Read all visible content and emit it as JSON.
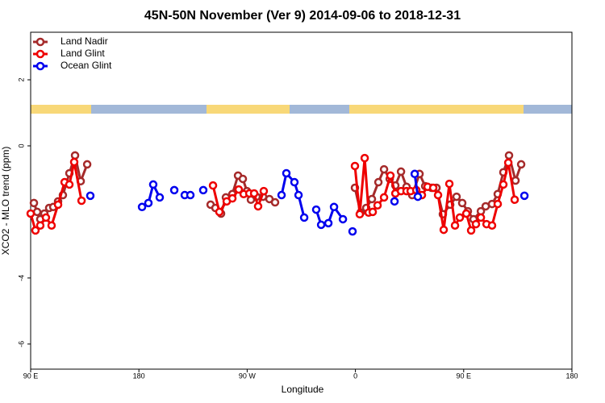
{
  "chart_data": {
    "type": "line",
    "title": "45N-50N November (Ver 9)   2014-09-06 to 2018-12-31",
    "x_label": "Longitude",
    "y_label": "XCO2 - MLO trend (ppm)",
    "xlim": [
      90,
      540
    ],
    "xticks": [
      {
        "value": 90,
        "label": "90 E"
      },
      180,
      {
        "value": 270,
        "label": "90 W"
      },
      {
        "value": 360,
        "label": "0"
      },
      {
        "value": 450,
        "label": "90 E"
      },
      {
        "value": 540,
        "label": "180"
      }
    ],
    "ylim": [
      -6.76,
      3.44
    ],
    "yticks": [
      -6,
      -4,
      0,
      2
    ],
    "legend": "top-left",
    "series": [
      {
        "name": "Land Nadir",
        "color": "#a52a2a",
        "x": [
          92.7,
          95.4,
          98.0,
          101.4,
          105.4,
          108.8,
          112.8,
          116.8,
          122.2,
          126.9,
          131.6,
          137.0,
          null,
          239.6,
          243.6,
          248.3,
          252.3,
          257.7,
          262.4,
          266.4,
          269.8,
          273.1,
          277.8,
          283.2,
          288.5,
          293.2,
          null,
          359.6,
          364.3,
          369.0,
          373.7,
          379.1,
          383.8,
          388.5,
          393.2,
          397.9,
          402.5,
          407.2,
          413.3,
          418.0,
          423.3,
          427.4,
          432.7,
          438.8,
          444.1,
          448.8,
          453.5,
          458.2,
          464.3,
          468.3,
          473.6,
          478.3,
          483.0,
          487.7,
          493.1,
          497.8
        ],
        "values": [
          -1.73,
          -2.0,
          -2.22,
          -2.05,
          -1.88,
          -1.85,
          -1.68,
          -1.49,
          -0.83,
          -0.29,
          -1.07,
          -0.56,
          null,
          -1.78,
          -1.88,
          -2.05,
          -1.56,
          -1.46,
          -0.9,
          -1.0,
          -1.37,
          -1.63,
          -1.54,
          -1.54,
          -1.61,
          -1.71,
          null,
          -1.27,
          -2.02,
          -1.88,
          -1.61,
          -1.1,
          -0.71,
          -1.0,
          -1.2,
          -0.78,
          -1.24,
          -1.49,
          -0.85,
          -1.22,
          -1.27,
          -1.27,
          -2.07,
          -1.78,
          -1.54,
          -1.73,
          -1.98,
          -2.22,
          -1.98,
          -1.83,
          -1.76,
          -1.46,
          -0.8,
          -0.29,
          -1.05,
          -0.56
        ]
      },
      {
        "name": "Land Glint",
        "color": "#ee0000",
        "x": [
          90.0,
          94.0,
          98.0,
          102.7,
          107.4,
          112.8,
          118.2,
          122.2,
          126.2,
          132.3,
          null,
          241.6,
          246.9,
          253.0,
          257.7,
          263.0,
          267.1,
          271.8,
          275.8,
          279.1,
          283.8,
          null,
          359.6,
          363.6,
          367.7,
          371.0,
          374.4,
          378.4,
          383.8,
          389.1,
          393.2,
          397.9,
          402.5,
          405.9,
          410.6,
          415.3,
          420.0,
          424.7,
          428.7,
          433.4,
          438.1,
          442.8,
          446.8,
          452.2,
          456.2,
          460.2,
          464.3,
          469.0,
          473.6,
          478.3,
          483.0,
          487.1,
          492.4
        ],
        "values": [
          -2.05,
          -2.56,
          -2.41,
          -2.17,
          -2.41,
          -1.78,
          -1.1,
          -1.17,
          -0.49,
          -1.66,
          null,
          -1.2,
          -2.0,
          -1.68,
          -1.59,
          -1.32,
          -1.46,
          -1.44,
          -1.44,
          -1.83,
          -1.37,
          null,
          -0.61,
          -2.07,
          -0.37,
          -2.02,
          -2.0,
          -1.8,
          -1.56,
          -0.9,
          -1.44,
          -1.37,
          -1.37,
          -1.37,
          -1.34,
          -1.49,
          -1.24,
          -1.27,
          -1.49,
          -2.54,
          -1.15,
          -2.41,
          -2.17,
          -2.05,
          -2.56,
          -2.37,
          -2.17,
          -2.37,
          -2.41,
          -1.76,
          -1.17,
          -0.51,
          -1.63
        ]
      },
      {
        "name": "Ocean Glint",
        "color": "#0000ee",
        "x": [
          139.6,
          null,
          182.6,
          187.9,
          191.9,
          197.3,
          null,
          209.4,
          null,
          218.1,
          222.8,
          null,
          233.5,
          null,
          298.6,
          302.6,
          309.3,
          312.7,
          317.4,
          null,
          327.4,
          331.5,
          337.5,
          342.2,
          349.6,
          null,
          357.6,
          null,
          392.5,
          null,
          409.3,
          411.9,
          null,
          500.5
        ],
        "values": [
          -1.51,
          null,
          -1.85,
          -1.73,
          -1.17,
          -1.56,
          null,
          -1.34,
          null,
          -1.49,
          -1.49,
          null,
          -1.34,
          null,
          -1.49,
          -0.83,
          -1.1,
          -1.49,
          -2.17,
          null,
          -1.93,
          -2.39,
          -2.34,
          -1.85,
          -2.22,
          null,
          -2.59,
          null,
          -1.68,
          null,
          -0.85,
          -1.54,
          null,
          -1.51
        ]
      }
    ]
  }
}
